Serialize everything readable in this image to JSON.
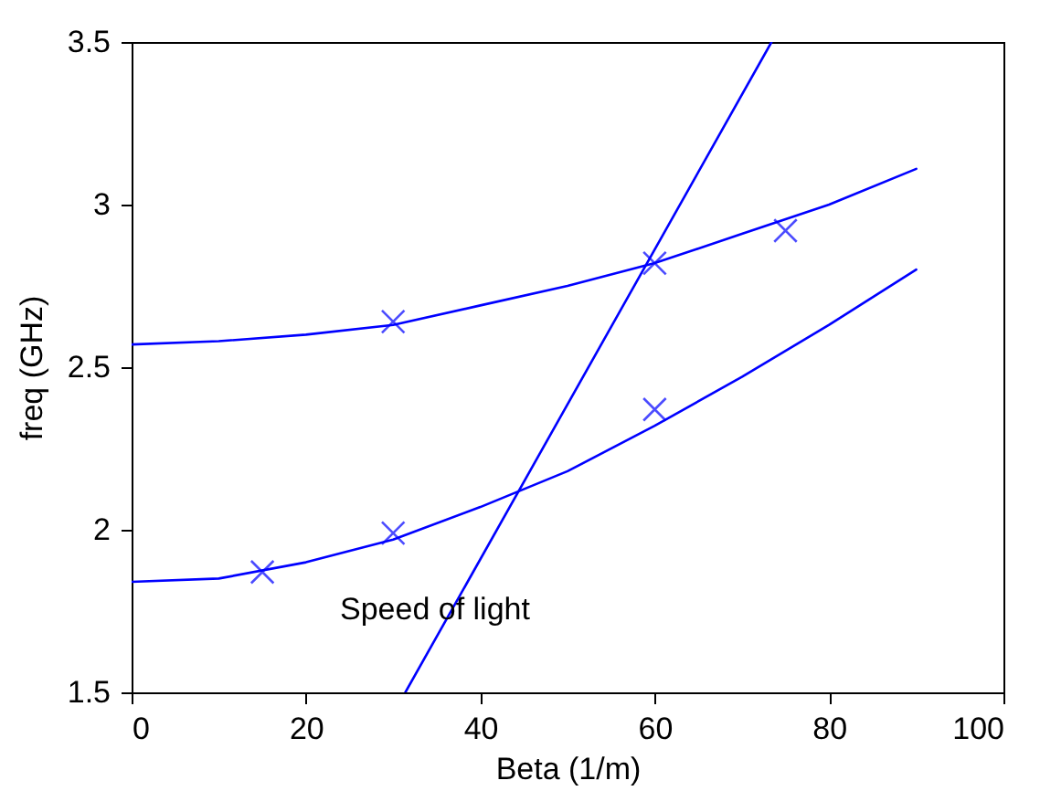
{
  "chart_data": {
    "type": "line",
    "xlabel": "Beta (1/m)",
    "ylabel": "freq (GHz)",
    "xlim": [
      0,
      100
    ],
    "xticks": [
      0,
      20,
      40,
      60,
      80,
      100
    ],
    "ylim": [
      1.5,
      3.5
    ],
    "yticks": [
      1.5,
      2,
      2.5,
      3,
      3.5
    ],
    "grid": false,
    "annotations": [
      "Speed of light"
    ],
    "series": [
      {
        "color": "#0000ff",
        "marker": "none",
        "x": [
          0,
          10,
          20,
          30,
          40,
          50,
          60,
          70,
          80,
          90
        ],
        "values": [
          2.57,
          2.58,
          2.6,
          2.63,
          2.69,
          2.75,
          2.82,
          2.91,
          3.0,
          3.11
        ]
      },
      {
        "color": "#0000ff",
        "marker": "none",
        "x": [
          0,
          10,
          20,
          30,
          40,
          50,
          60,
          70,
          80,
          90
        ],
        "values": [
          1.84,
          1.85,
          1.9,
          1.97,
          2.07,
          2.18,
          2.32,
          2.47,
          2.63,
          2.8
        ]
      },
      {
        "color": "#0000ff",
        "marker": "none",
        "x": [
          31.4,
          73.4
        ],
        "values": [
          1.5,
          3.5
        ]
      },
      {
        "type": "scatter",
        "color": "#0000ff",
        "marker": "cross",
        "x": [
          30,
          60,
          75
        ],
        "values": [
          2.64,
          2.82,
          2.92
        ]
      },
      {
        "type": "scatter",
        "color": "#0000ff",
        "marker": "cross",
        "x": [
          15,
          30,
          60
        ],
        "values": [
          1.87,
          1.99,
          2.37
        ]
      }
    ]
  }
}
